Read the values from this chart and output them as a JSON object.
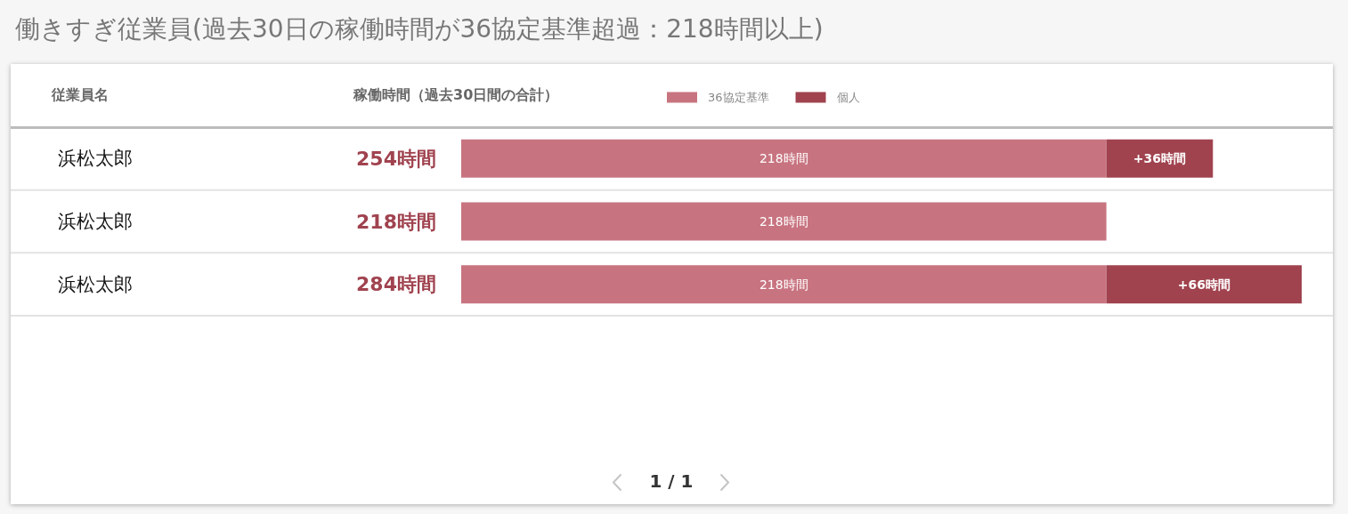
{
  "chart_data": {
    "type": "bar",
    "orientation": "horizontal",
    "stacked": true,
    "title": "働きすぎ従業員(過去30日の稼働時間が36協定基準超過：218時間以上)",
    "xlabel": "稼働時間（過去30日間の合計）",
    "ylabel": "従業員名",
    "categories": [
      "浜松太郎",
      "浜松太郎",
      "浜松太郎"
    ],
    "series": [
      {
        "name": "36協定基準",
        "color": "#c87480",
        "values": [
          218,
          218,
          218
        ],
        "value_labels": [
          "218時間",
          "218時間",
          "218時間"
        ]
      },
      {
        "name": "個人",
        "color": "#a0434f",
        "values": [
          36,
          null,
          66
        ],
        "value_labels": [
          "+36時間",
          null,
          "+66時間"
        ]
      }
    ],
    "totals": [
      "254時間",
      "218時間",
      "284時間"
    ],
    "legend": "top",
    "grid": "y",
    "tick_labels": "y",
    "annotations": [
      "1 / 1"
    ]
  }
}
